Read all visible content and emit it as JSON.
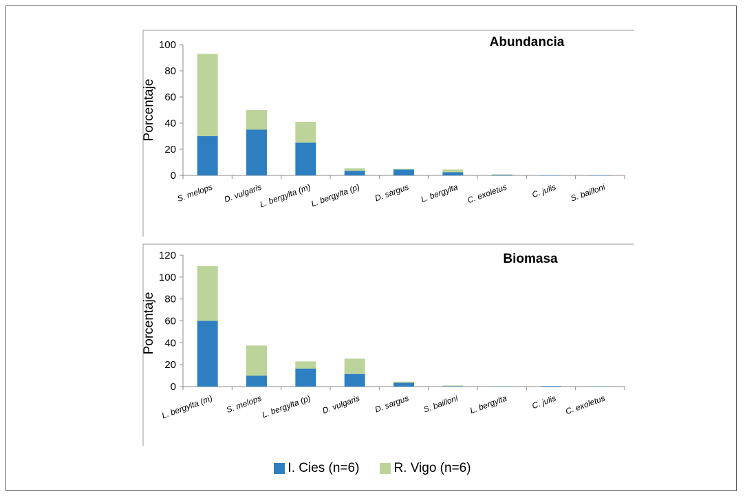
{
  "colors": {
    "series1": "#2e7fc2",
    "series2": "#bcd49a"
  },
  "legend": {
    "series1": "I. Cies (n=6)",
    "series2": "R. Vigo (n=6)"
  },
  "chart_data": [
    {
      "type": "bar",
      "stacked": true,
      "title": "Abundancia",
      "ylabel": "Porcentaje",
      "xlabel": "",
      "ylim": [
        0,
        100
      ],
      "yticks": [
        0,
        20,
        40,
        60,
        80,
        100
      ],
      "categories": [
        "S. melops",
        "D. vulgaris",
        "L. bergylta (m)",
        "L. bergylta (p)",
        "D. sargus",
        "L. bergylta",
        "C. exoletus",
        "C. julis",
        "S. bailloni"
      ],
      "series": [
        {
          "name": "I. Cies (n=6)",
          "values": [
            30,
            35,
            25,
            3.5,
            4.5,
            2.5,
            0.6,
            0.1,
            0.1
          ]
        },
        {
          "name": "R. Vigo (n=6)",
          "values": [
            63,
            15,
            16,
            2,
            0.5,
            2,
            0.2,
            0,
            0
          ]
        }
      ]
    },
    {
      "type": "bar",
      "stacked": true,
      "title": "Biomasa",
      "ylabel": "Porcentaje",
      "xlabel": "",
      "ylim": [
        0,
        120
      ],
      "yticks": [
        0,
        20,
        40,
        60,
        80,
        100,
        120
      ],
      "categories": [
        "L. bergylta (m)",
        "S. melops",
        "L. bergylta (p)",
        "D. vulgaris",
        "D. sargus",
        "S. bailloni",
        "L. bergylta",
        "C. julis",
        "C. exoletus"
      ],
      "series": [
        {
          "name": "I. Cies (n=6)",
          "values": [
            60,
            10,
            16.5,
            11.5,
            3.5,
            0.3,
            0.2,
            0.5,
            0.1
          ]
        },
        {
          "name": "R. Vigo (n=6)",
          "values": [
            50,
            27.5,
            6.5,
            14,
            1,
            0.7,
            0.3,
            0,
            0.4
          ]
        }
      ]
    }
  ]
}
